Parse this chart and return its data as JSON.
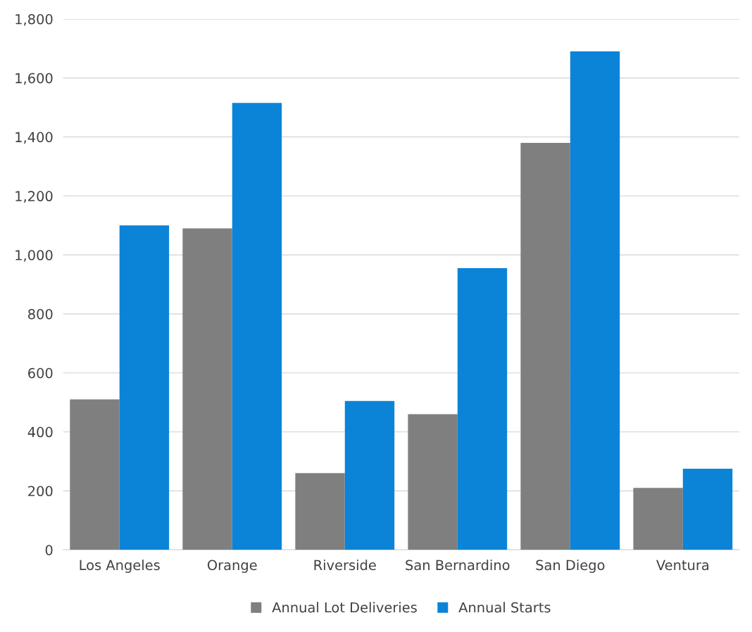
{
  "chart_data": {
    "type": "bar",
    "categories": [
      "Los Angeles",
      "Orange",
      "Riverside",
      "San Bernardino",
      "San Diego",
      "Ventura"
    ],
    "series": [
      {
        "name": "Annual Lot Deliveries",
        "color": "#7f7f7f",
        "values": [
          510,
          1090,
          260,
          460,
          1380,
          210
        ]
      },
      {
        "name": "Annual Starts",
        "color": "#0b84d8",
        "values": [
          1100,
          1515,
          505,
          955,
          1690,
          275
        ]
      }
    ],
    "ylim": [
      0,
      1800
    ],
    "yticks": [
      {
        "value": 0,
        "label": "0"
      },
      {
        "value": 200,
        "label": "200"
      },
      {
        "value": 400,
        "label": "400"
      },
      {
        "value": 600,
        "label": "600"
      },
      {
        "value": 800,
        "label": "800"
      },
      {
        "value": 1000,
        "label": "1,000"
      },
      {
        "value": 1200,
        "label": "1,200"
      },
      {
        "value": 1400,
        "label": "1,400"
      },
      {
        "value": 1600,
        "label": "1,600"
      },
      {
        "value": 1800,
        "label": "1,800"
      }
    ],
    "grid": "y",
    "legend": "bottom"
  }
}
